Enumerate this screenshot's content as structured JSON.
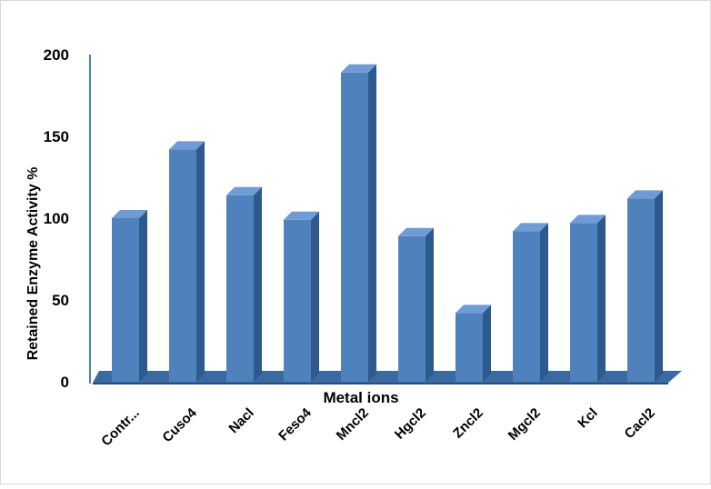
{
  "chart_data": {
    "type": "bar",
    "style": "3d-column",
    "title": "",
    "xlabel": "Metal ions",
    "ylabel": "Retained Enzyme Activity %",
    "categories": [
      "Contr...",
      "Cuso4",
      "Nacl",
      "Feso4",
      "Mncl2",
      "Hgcl2",
      "Zncl2",
      "Mgcl2",
      "Kcl",
      "Cacl2"
    ],
    "values": [
      100,
      142,
      114,
      99,
      189,
      89,
      42,
      92,
      97,
      112
    ],
    "ylim": [
      0,
      200
    ],
    "yticks": [
      "0",
      "50",
      "100",
      "150",
      "200"
    ],
    "grid": false,
    "legend": "none",
    "colors": {
      "front": "#4f81bd",
      "side": "#2d5a8c",
      "top": "#6f9cd6",
      "floor": "#3b6aa3",
      "axis": "#4a7ebb"
    }
  }
}
